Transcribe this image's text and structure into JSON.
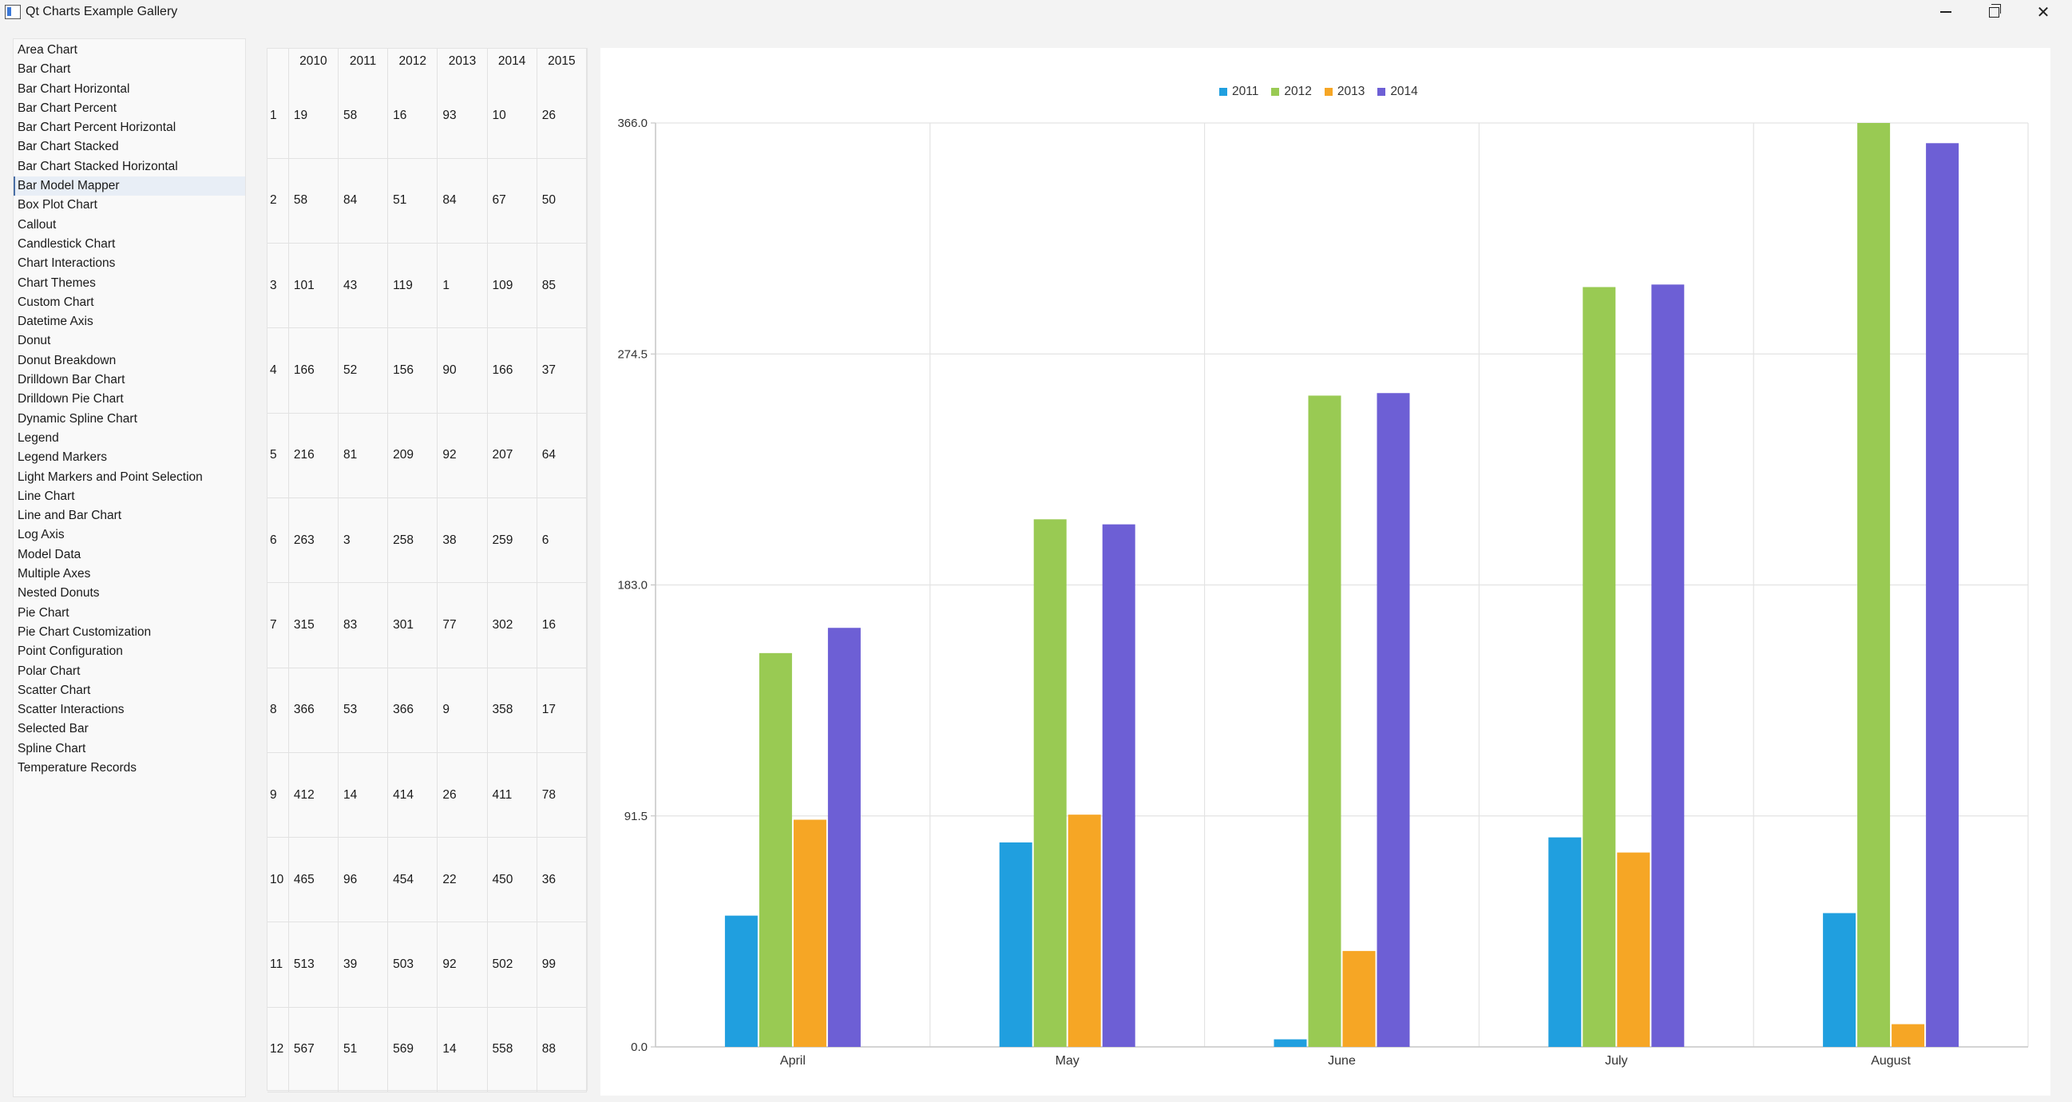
{
  "window": {
    "title": "Qt Charts Example Gallery",
    "minimize": "minimize",
    "maximize": "restore",
    "close": "close"
  },
  "sidebar": {
    "selected_index": 7,
    "items": [
      "Area Chart",
      "Bar Chart",
      "Bar Chart Horizontal",
      "Bar Chart Percent",
      "Bar Chart Percent Horizontal",
      "Bar Chart Stacked",
      "Bar Chart Stacked Horizontal",
      "Bar Model Mapper",
      "Box Plot Chart",
      "Callout",
      "Candlestick Chart",
      "Chart Interactions",
      "Chart Themes",
      "Custom Chart",
      "Datetime Axis",
      "Donut",
      "Donut Breakdown",
      "Drilldown Bar Chart",
      "Drilldown Pie Chart",
      "Dynamic Spline Chart",
      "Legend",
      "Legend Markers",
      "Light Markers and Point Selection",
      "Line Chart",
      "Line and Bar Chart",
      "Log Axis",
      "Model Data",
      "Multiple Axes",
      "Nested Donuts",
      "Pie Chart",
      "Pie Chart Customization",
      "Point Configuration",
      "Polar Chart",
      "Scatter Chart",
      "Scatter Interactions",
      "Selected Bar",
      "Spline Chart",
      "Temperature Records"
    ]
  },
  "table": {
    "columns": [
      "2010",
      "2011",
      "2012",
      "2013",
      "2014",
      "2015"
    ],
    "rows": [
      {
        "label": "1",
        "values": [
          "19",
          "58",
          "16",
          "93",
          "10",
          "26"
        ]
      },
      {
        "label": "2",
        "values": [
          "58",
          "84",
          "51",
          "84",
          "67",
          "50"
        ]
      },
      {
        "label": "3",
        "values": [
          "101",
          "43",
          "119",
          "1",
          "109",
          "85"
        ]
      },
      {
        "label": "4",
        "values": [
          "166",
          "52",
          "156",
          "90",
          "166",
          "37"
        ]
      },
      {
        "label": "5",
        "values": [
          "216",
          "81",
          "209",
          "92",
          "207",
          "64"
        ]
      },
      {
        "label": "6",
        "values": [
          "263",
          "3",
          "258",
          "38",
          "259",
          "6"
        ]
      },
      {
        "label": "7",
        "values": [
          "315",
          "83",
          "301",
          "77",
          "302",
          "16"
        ]
      },
      {
        "label": "8",
        "values": [
          "366",
          "53",
          "366",
          "9",
          "358",
          "17"
        ]
      },
      {
        "label": "9",
        "values": [
          "412",
          "14",
          "414",
          "26",
          "411",
          "78"
        ]
      },
      {
        "label": "10",
        "values": [
          "465",
          "96",
          "454",
          "22",
          "450",
          "36"
        ]
      },
      {
        "label": "11",
        "values": [
          "513",
          "39",
          "503",
          "92",
          "502",
          "99"
        ]
      },
      {
        "label": "12",
        "values": [
          "567",
          "51",
          "569",
          "14",
          "558",
          "88"
        ]
      }
    ]
  },
  "chart_data": {
    "type": "bar",
    "title": "",
    "xlabel": "",
    "ylabel": "",
    "categories": [
      "April",
      "May",
      "June",
      "July",
      "August"
    ],
    "ylim": [
      0,
      366
    ],
    "yticks": [
      "0.0",
      "91.5",
      "183.0",
      "274.5",
      "366.0"
    ],
    "grid": true,
    "legend_position": "top",
    "series": [
      {
        "name": "2011",
        "color": "#209fdf",
        "values": [
          52,
          81,
          3,
          83,
          53
        ]
      },
      {
        "name": "2012",
        "color": "#99ca53",
        "values": [
          156,
          209,
          258,
          301,
          366
        ]
      },
      {
        "name": "2013",
        "color": "#f6a625",
        "values": [
          90,
          92,
          38,
          77,
          9
        ]
      },
      {
        "name": "2014",
        "color": "#6d5fd5",
        "values": [
          166,
          207,
          259,
          302,
          358
        ]
      }
    ]
  }
}
